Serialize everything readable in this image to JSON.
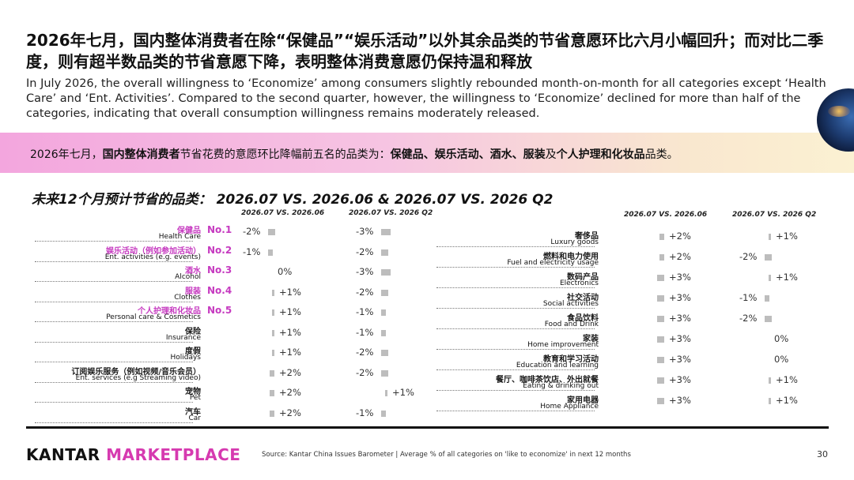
{
  "title_cn": "2026年七月，国内整体消费者在除“保健品”“娱乐活动”以外其余品类的节省意愿环比六月小幅回升；而对比二季度，则有超半数品类的节省意愿下降，表明整体消费意愿仍保持温和释放",
  "title_en": "In July 2026, the overall willingness to ‘Economize’ among consumers slightly rebounded month-on-month for all categories except ‘Health Care’ and ‘Ent. Activities’. Compared to the second quarter, however, the willingness to ‘Economize’ declined for more than half of the categories, indicating that overall consumption willingness remains moderately released.",
  "banner": {
    "part1": "2026年七月，",
    "part2": "国内整体消费者",
    "part3": "节省花费的意愿环比降幅前五名的品类为：",
    "part4": "保健品、娱乐活动、酒水、服装",
    "part5": "及",
    "part6": "个人护理和化妆品",
    "part7": "品类。"
  },
  "chart_data": {
    "type": "table",
    "title": "未来12个月预计节省的品类：  2026.07 VS. 2026.06  &  2026.07 VS. 2026 Q2",
    "columns": [
      "2026.07 VS. 2026.06",
      "2026.07 VS. 2026 Q2"
    ],
    "left_rows": [
      {
        "cn": "保健品",
        "en": "Health Care",
        "rank": "No.1",
        "mom_label": "-2%",
        "mom": -2,
        "qoq_label": "-3%",
        "qoq": -3
      },
      {
        "cn": "娱乐活动（例如参加活动）",
        "en": "Ent. activities (e.g. events)",
        "rank": "No.2",
        "mom_label": "-1%",
        "mom": -1,
        "qoq_label": "-2%",
        "qoq": -2
      },
      {
        "cn": "酒水",
        "en": "Alcohol",
        "rank": "No.3",
        "mom_label": "0%",
        "mom": 0,
        "qoq_label": "-3%",
        "qoq": -3
      },
      {
        "cn": "服装",
        "en": "Clothes",
        "rank": "No.4",
        "mom_label": "+1%",
        "mom": 1,
        "qoq_label": "-2%",
        "qoq": -2
      },
      {
        "cn": "个人护理和化妆品",
        "en": "Personal care & Cosmetics",
        "rank": "No.5",
        "mom_label": "+1%",
        "mom": 1,
        "qoq_label": "-1%",
        "qoq": -1
      },
      {
        "cn": "保险",
        "en": "Insurance",
        "rank": "",
        "mom_label": "+1%",
        "mom": 1,
        "qoq_label": "-1%",
        "qoq": -1
      },
      {
        "cn": "度假",
        "en": "Holidays",
        "rank": "",
        "mom_label": "+1%",
        "mom": 1,
        "qoq_label": "-2%",
        "qoq": -2
      },
      {
        "cn": "订阅娱乐服务（例如视频/音乐会员）",
        "en": "Ent. services (e.g Streaming video)",
        "rank": "",
        "mom_label": "+2%",
        "mom": 2,
        "qoq_label": "-2%",
        "qoq": -2
      },
      {
        "cn": "宠物",
        "en": "Pet",
        "rank": "",
        "mom_label": "+2%",
        "mom": 2,
        "qoq_label": "+1%",
        "qoq": 1
      },
      {
        "cn": "汽车",
        "en": "Car",
        "rank": "",
        "mom_label": "+2%",
        "mom": 2,
        "qoq_label": "-1%",
        "qoq": -1
      }
    ],
    "right_rows": [
      {
        "cn": "奢侈品",
        "en": "Luxury goods",
        "mom_label": "+2%",
        "mom": 2,
        "qoq_label": "+1%",
        "qoq": 1
      },
      {
        "cn": "燃料和电力使用",
        "en": "Fuel and electricity usage",
        "mom_label": "+2%",
        "mom": 2,
        "qoq_label": "-2%",
        "qoq": -2
      },
      {
        "cn": "数码产品",
        "en": "Electronics",
        "mom_label": "+3%",
        "mom": 3,
        "qoq_label": "+1%",
        "qoq": 1
      },
      {
        "cn": "社交活动",
        "en": "Social activities",
        "mom_label": "+3%",
        "mom": 3,
        "qoq_label": "-1%",
        "qoq": -1
      },
      {
        "cn": "食品饮料",
        "en": "Food and Drink",
        "mom_label": "+3%",
        "mom": 3,
        "qoq_label": "-2%",
        "qoq": -2
      },
      {
        "cn": "家装",
        "en": "Home improvement",
        "mom_label": "+3%",
        "mom": 3,
        "qoq_label": "0%",
        "qoq": 0
      },
      {
        "cn": "教育和学习活动",
        "en": "Education and learning",
        "mom_label": "+3%",
        "mom": 3,
        "qoq_label": "0%",
        "qoq": 0
      },
      {
        "cn": "餐厅、咖啡茶饮店、外出就餐",
        "en": "Eating & drinking out",
        "mom_label": "+3%",
        "mom": 3,
        "qoq_label": "+1%",
        "qoq": 1
      },
      {
        "cn": "家用电器",
        "en": "Home Appliance",
        "mom_label": "+3%",
        "mom": 3,
        "qoq_label": "+1%",
        "qoq": 1
      }
    ]
  },
  "footer": {
    "logo_kantar": "KANTAR",
    "logo_marketplace": "MARKETPLACE",
    "source": "Source:  Kantar China Issues Barometer | Average % of all categories on 'like to economize' in next 12 months",
    "page": "30"
  },
  "colors": {
    "accent": "#c63ac0",
    "bar": "#bdbdbd"
  }
}
